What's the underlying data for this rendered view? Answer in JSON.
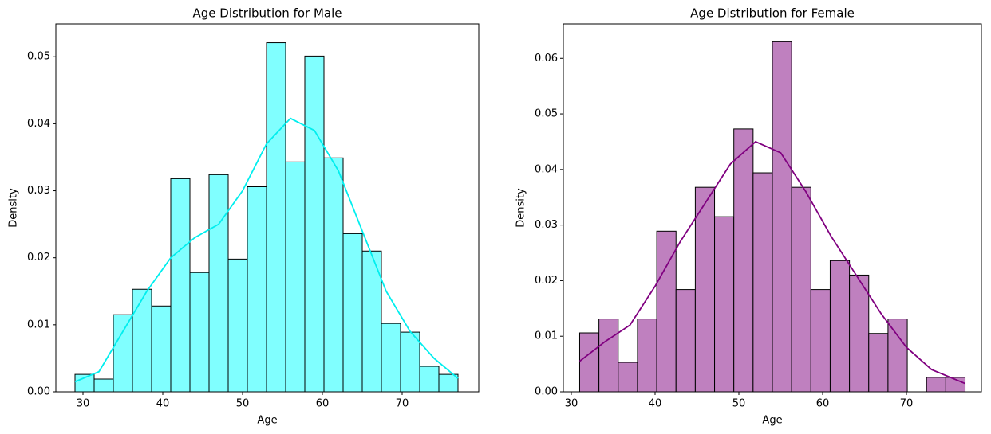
{
  "chart_data": [
    {
      "type": "histogram",
      "title": "Age Distribution for Male",
      "xlabel": "Age",
      "ylabel": "Density",
      "bins": [
        29,
        31.4,
        33.8,
        36.2,
        38.6,
        41,
        43.4,
        45.8,
        48.2,
        50.6,
        53,
        55.4,
        57.8,
        60.2,
        62.6,
        65,
        67.4,
        69.8,
        72.2,
        74.6,
        77
      ],
      "values": [
        0.0026,
        0.0019,
        0.0115,
        0.0153,
        0.0128,
        0.0318,
        0.0178,
        0.0324,
        0.0198,
        0.0306,
        0.0521,
        0.0343,
        0.0501,
        0.0349,
        0.0236,
        0.021,
        0.0102,
        0.0089,
        0.0038,
        0.0026
      ],
      "color": "#80ffff",
      "edgecolor": "#000000",
      "kde": {
        "color": "#00eeee",
        "x": [
          29,
          32,
          35,
          38,
          41,
          44,
          47,
          50,
          53,
          56,
          59,
          62,
          65,
          68,
          71,
          74,
          77
        ],
        "values": [
          0.0015,
          0.003,
          0.009,
          0.015,
          0.02,
          0.023,
          0.025,
          0.03,
          0.037,
          0.0408,
          0.039,
          0.033,
          0.024,
          0.015,
          0.009,
          0.005,
          0.002
        ]
      },
      "xlim": [
        26.6,
        79.6
      ],
      "xticks": [
        30,
        40,
        50,
        60,
        70
      ],
      "ylim": [
        0,
        0.0549
      ],
      "yticks": [
        {
          "value": 0,
          "label": "0.00"
        },
        {
          "value": 0.01,
          "label": "0.01"
        },
        {
          "value": 0.02,
          "label": "0.02"
        },
        {
          "value": 0.03,
          "label": "0.03"
        },
        {
          "value": 0.04,
          "label": "0.04"
        },
        {
          "value": 0.05,
          "label": "0.05"
        }
      ]
    },
    {
      "type": "histogram",
      "title": "Age Distribution for Female",
      "xlabel": "Age",
      "ylabel": "Density",
      "bins": [
        31,
        33.3,
        35.6,
        37.9,
        40.2,
        42.5,
        44.8,
        47.1,
        49.4,
        51.7,
        54,
        56.3,
        58.6,
        60.9,
        63.2,
        65.5,
        67.8,
        70.1,
        72.4,
        74.7,
        77
      ],
      "values": [
        0.0106,
        0.0131,
        0.0053,
        0.0131,
        0.0289,
        0.0184,
        0.0368,
        0.0315,
        0.0473,
        0.0394,
        0.063,
        0.0368,
        0.0184,
        0.0236,
        0.021,
        0.0105,
        0.0131,
        0,
        0.0026,
        0.0026
      ],
      "color": "#bf80bf",
      "edgecolor": "#000000",
      "kde": {
        "color": "#800080",
        "x": [
          31,
          34,
          37,
          40,
          43,
          46,
          49,
          52,
          55,
          58,
          61,
          64,
          67,
          70,
          73,
          77
        ],
        "values": [
          0.0055,
          0.009,
          0.012,
          0.019,
          0.027,
          0.034,
          0.041,
          0.045,
          0.043,
          0.036,
          0.028,
          0.021,
          0.014,
          0.008,
          0.004,
          0.0015
        ]
      },
      "xlim": [
        29.05,
        78.95
      ],
      "xticks": [
        30,
        40,
        50,
        60,
        70
      ],
      "ylim": [
        0,
        0.0662
      ],
      "yticks": [
        {
          "value": 0,
          "label": "0.00"
        },
        {
          "value": 0.01,
          "label": "0.01"
        },
        {
          "value": 0.02,
          "label": "0.02"
        },
        {
          "value": 0.03,
          "label": "0.03"
        },
        {
          "value": 0.04,
          "label": "0.04"
        },
        {
          "value": 0.05,
          "label": "0.05"
        },
        {
          "value": 0.06,
          "label": "0.06"
        }
      ]
    }
  ]
}
